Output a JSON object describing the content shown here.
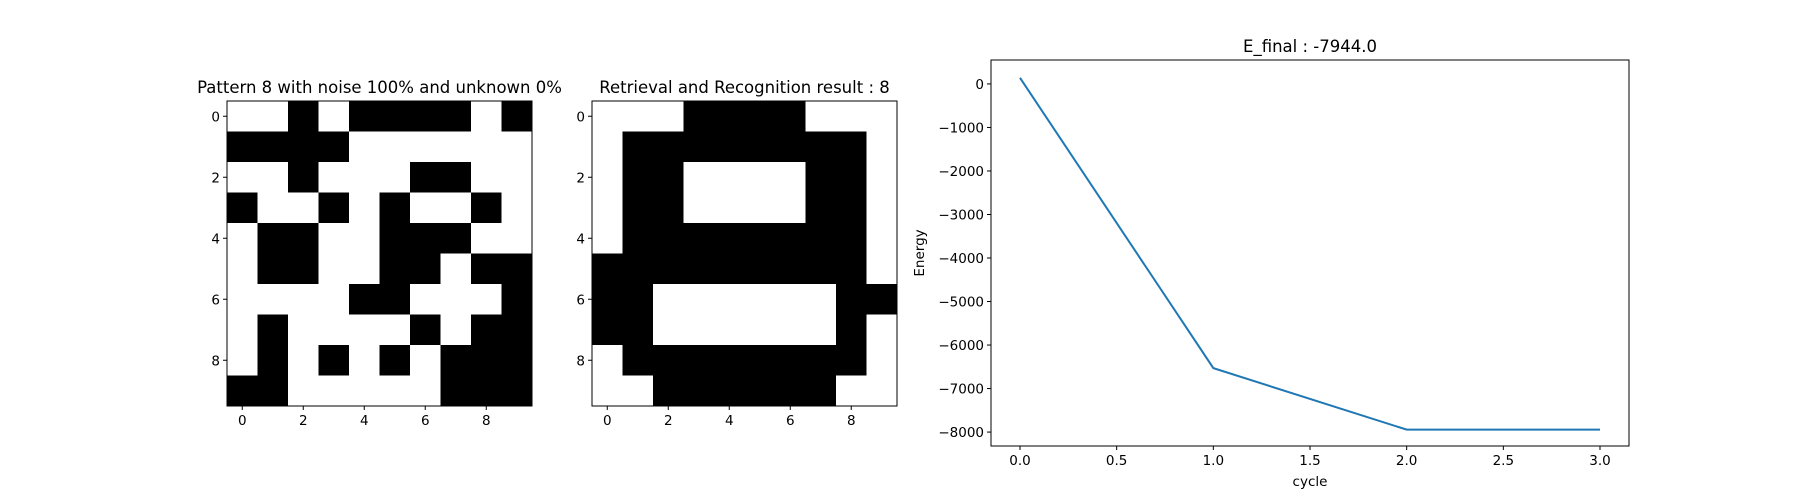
{
  "chart_data": [
    {
      "type": "heatmap",
      "title": "Pattern 8 with noise 100% and unknown 0%",
      "x_ticks": [
        "0",
        "2",
        "4",
        "6",
        "8"
      ],
      "y_ticks": [
        "0",
        "2",
        "4",
        "6",
        "8"
      ],
      "colormap": {
        "0": "#ffffff",
        "1": "#000000"
      },
      "grid": [
        [
          0,
          0,
          1,
          0,
          1,
          1,
          1,
          1,
          0,
          1
        ],
        [
          1,
          1,
          1,
          1,
          0,
          0,
          0,
          0,
          0,
          0
        ],
        [
          0,
          0,
          1,
          0,
          0,
          0,
          1,
          1,
          0,
          0
        ],
        [
          1,
          0,
          0,
          1,
          0,
          1,
          0,
          0,
          1,
          0
        ],
        [
          0,
          1,
          1,
          0,
          0,
          1,
          1,
          1,
          0,
          0
        ],
        [
          0,
          1,
          1,
          0,
          0,
          1,
          1,
          0,
          1,
          1
        ],
        [
          0,
          0,
          0,
          0,
          1,
          1,
          0,
          0,
          0,
          1
        ],
        [
          0,
          1,
          0,
          0,
          0,
          0,
          1,
          0,
          1,
          1
        ],
        [
          0,
          1,
          0,
          1,
          0,
          1,
          0,
          1,
          1,
          1
        ],
        [
          1,
          1,
          0,
          0,
          0,
          0,
          0,
          1,
          1,
          1
        ]
      ]
    },
    {
      "type": "heatmap",
      "title": "Retrieval and Recognition result : 8",
      "x_ticks": [
        "0",
        "2",
        "4",
        "6",
        "8"
      ],
      "y_ticks": [
        "0",
        "2",
        "4",
        "6",
        "8"
      ],
      "colormap": {
        "0": "#ffffff",
        "1": "#000000"
      },
      "grid": [
        [
          0,
          0,
          0,
          1,
          1,
          1,
          1,
          0,
          0,
          0
        ],
        [
          0,
          1,
          1,
          1,
          1,
          1,
          1,
          1,
          1,
          0
        ],
        [
          0,
          1,
          1,
          0,
          0,
          0,
          0,
          1,
          1,
          0
        ],
        [
          0,
          1,
          1,
          0,
          0,
          0,
          0,
          1,
          1,
          0
        ],
        [
          0,
          1,
          1,
          1,
          1,
          1,
          1,
          1,
          1,
          0
        ],
        [
          1,
          1,
          1,
          1,
          1,
          1,
          1,
          1,
          1,
          0
        ],
        [
          1,
          1,
          0,
          0,
          0,
          0,
          0,
          0,
          1,
          1
        ],
        [
          1,
          1,
          0,
          0,
          0,
          0,
          0,
          0,
          1,
          0
        ],
        [
          0,
          1,
          1,
          1,
          1,
          1,
          1,
          1,
          1,
          0
        ],
        [
          0,
          0,
          1,
          1,
          1,
          1,
          1,
          1,
          0,
          0
        ]
      ]
    },
    {
      "type": "line",
      "title": "E_final : -7944.0",
      "xlabel": "cycle",
      "ylabel": "Energy",
      "xlim": [
        -0.15,
        3.15
      ],
      "ylim": [
        -8320,
        550
      ],
      "x_ticks": [
        0.0,
        0.5,
        1.0,
        1.5,
        2.0,
        2.5,
        3.0
      ],
      "x_tick_labels": [
        "0.0",
        "0.5",
        "1.0",
        "1.5",
        "2.0",
        "2.5",
        "3.0"
      ],
      "y_ticks": [
        0,
        -1000,
        -2000,
        -3000,
        -4000,
        -5000,
        -6000,
        -7000,
        -8000
      ],
      "y_tick_labels": [
        "0",
        "−1000",
        "−2000",
        "−3000",
        "−4000",
        "−5000",
        "−6000",
        "−7000",
        "−8000"
      ],
      "line_color": "#1f77b4",
      "series": [
        {
          "x": [
            0,
            1,
            2,
            3
          ],
          "y": [
            140,
            -6530,
            -7944,
            -7944
          ]
        }
      ],
      "grid": false
    }
  ]
}
